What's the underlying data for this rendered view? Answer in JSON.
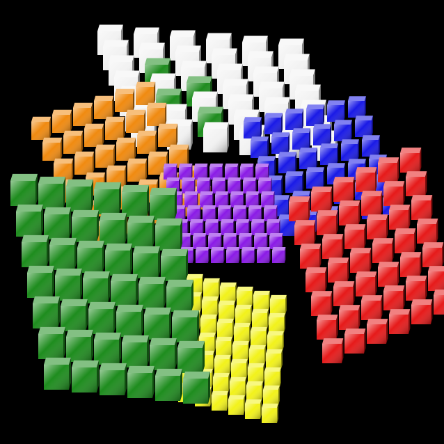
{
  "scene": {
    "title": "",
    "background": "#000000",
    "puzzle_type": "cube puzzle exploded view",
    "cubies_per_edge": 7
  },
  "faces": [
    {
      "name": "top",
      "color": "#f2f2f2",
      "sticker": "white"
    },
    {
      "name": "left",
      "color": "#f08a10",
      "sticker": "orange"
    },
    {
      "name": "back",
      "color": "#1a1ae6",
      "sticker": "blue"
    },
    {
      "name": "core",
      "color": "#8a1ae6",
      "sticker": "purple"
    },
    {
      "name": "right",
      "color": "#e61a1a",
      "sticker": "red"
    },
    {
      "name": "front",
      "color": "#1e8c1e",
      "sticker": "green"
    },
    {
      "name": "bottom",
      "color": "#f2f21a",
      "sticker": "yellow"
    }
  ],
  "highlighted_cubies": {
    "face": "top",
    "color": "#1e8c1e",
    "count": 3
  }
}
